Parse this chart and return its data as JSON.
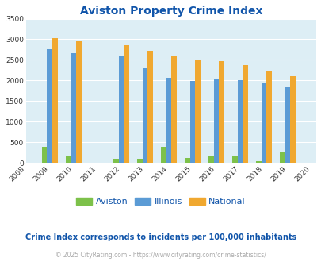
{
  "title": "Aviston Property Crime Index",
  "years": [
    2008,
    2009,
    2010,
    2011,
    2012,
    2013,
    2014,
    2015,
    2016,
    2017,
    2018,
    2019,
    2020
  ],
  "aviston": [
    0,
    400,
    180,
    0,
    100,
    100,
    390,
    130,
    180,
    170,
    45,
    280,
    0
  ],
  "illinois": [
    0,
    2750,
    2670,
    0,
    2590,
    2290,
    2070,
    1995,
    2050,
    2010,
    1950,
    1840,
    0
  ],
  "national": [
    0,
    3030,
    2960,
    0,
    2860,
    2720,
    2590,
    2500,
    2470,
    2370,
    2220,
    2110,
    0
  ],
  "aviston_color": "#7dc14a",
  "illinois_color": "#5b9bd5",
  "national_color": "#f0a830",
  "plot_bg": "#ddeef5",
  "title_color": "#1155aa",
  "subtitle_color": "#1155aa",
  "footer_color": "#aaaaaa",
  "ylim": [
    0,
    3500
  ],
  "yticks": [
    0,
    500,
    1000,
    1500,
    2000,
    2500,
    3000,
    3500
  ],
  "subtitle": "Crime Index corresponds to incidents per 100,000 inhabitants",
  "footer": "© 2025 CityRating.com - https://www.cityrating.com/crime-statistics/"
}
